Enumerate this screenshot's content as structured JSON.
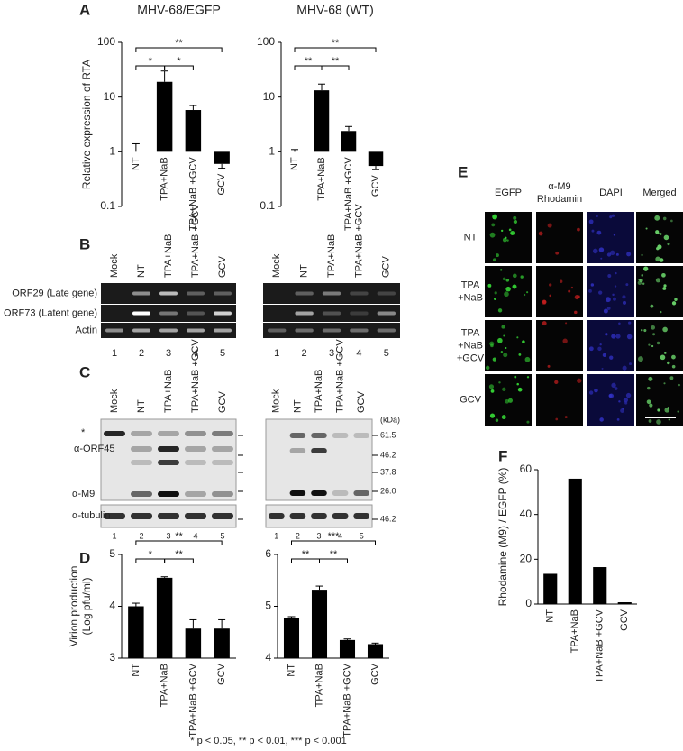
{
  "chart_data": [
    {
      "type": "bar",
      "title": "MHV-68/EGFP",
      "ylabel": [
        "Relative expression of RTA"
      ],
      "log": true,
      "categories": [
        "NT",
        "TPA+NaB",
        "TPA+NaB +GCV",
        "GCV"
      ],
      "values": [
        1.0,
        19,
        5.8,
        0.6
      ],
      "errors": [
        0.4,
        11,
        1.2,
        0.1
      ],
      "color": "#000000",
      "ylim": [
        0.1,
        100
      ],
      "yticks": [
        0.1,
        1,
        10,
        100
      ],
      "brackets": [
        {
          "categories": [
            "NT",
            "GCV"
          ],
          "label": "**"
        },
        {
          "categories": [
            "NT",
            "TPA+NaB"
          ],
          "label": "*"
        },
        {
          "categories": [
            "TPA+NaB",
            "TPA+NaB +GCV"
          ],
          "label": "*"
        }
      ]
    },
    {
      "type": "bar",
      "title": "MHV-68 (WT)",
      "log": true,
      "categories": [
        "NT",
        "TPA+NaB",
        "TPA+NaB +GCV",
        "GCV"
      ],
      "values": [
        1.0,
        13.3,
        2.4,
        0.55
      ],
      "errors": [
        0.1,
        4,
        0.5,
        0.08
      ],
      "color": "#000000",
      "ylim": [
        0.1,
        100
      ],
      "yticks": [
        0.1,
        1,
        10,
        100
      ],
      "brackets": [
        {
          "categories": [
            "NT",
            "GCV"
          ],
          "label": "**"
        },
        {
          "categories": [
            "NT",
            "TPA+NaB"
          ],
          "label": "**"
        },
        {
          "categories": [
            "TPA+NaB",
            "TPA+NaB +GCV"
          ],
          "label": "**"
        }
      ]
    },
    {
      "type": "bar",
      "ylabel": [
        "Virion production",
        "(Log pfu/ml)"
      ],
      "categories": [
        "NT",
        "TPA+NaB",
        "TPA+NaB +GCV",
        "GCV"
      ],
      "values": [
        4.0,
        4.55,
        3.57,
        3.57
      ],
      "errors": [
        0.06,
        0.02,
        0.17,
        0.17
      ],
      "color": "#000000",
      "ylim": [
        3,
        5
      ],
      "yticks": [
        3,
        4,
        5
      ],
      "brackets": [
        {
          "categories": [
            "NT",
            "GCV"
          ],
          "label": "**"
        },
        {
          "categories": [
            "NT",
            "TPA+NaB"
          ],
          "label": "*"
        },
        {
          "categories": [
            "TPA+NaB",
            "TPA+NaB +GCV"
          ],
          "label": "**"
        }
      ]
    },
    {
      "type": "bar",
      "categories": [
        "NT",
        "TPA+NaB",
        "TPA+NaB +GCV",
        "GCV"
      ],
      "values": [
        4.78,
        5.32,
        4.35,
        4.27
      ],
      "errors": [
        0.02,
        0.07,
        0.02,
        0.02
      ],
      "color": "#000000",
      "ylim": [
        4,
        6
      ],
      "yticks": [
        4,
        5,
        6
      ],
      "brackets": [
        {
          "categories": [
            "NT",
            "GCV"
          ],
          "label": "***"
        },
        {
          "categories": [
            "NT",
            "TPA+NaB"
          ],
          "label": "**"
        },
        {
          "categories": [
            "TPA+NaB",
            "TPA+NaB +GCV"
          ],
          "label": "**"
        }
      ]
    },
    {
      "type": "bar",
      "ylabel": [
        "Rhodamine (M9) / EGFP (%)"
      ],
      "categories": [
        "NT",
        "TPA+NaB",
        "TPA+NaB +GCV",
        "GCV"
      ],
      "values": [
        13.5,
        56,
        16.5,
        0.8
      ],
      "color": "#000000",
      "ylim": [
        0,
        60
      ],
      "yticks": [
        0,
        20,
        40,
        60
      ]
    }
  ],
  "figure": {
    "panel_letters": [
      "A",
      "B",
      "C",
      "D",
      "E",
      "F"
    ],
    "B": {
      "lanes": [
        "Mock",
        "NT",
        "TPA+NaB",
        "TPA+NaB +GCV",
        "GCV"
      ],
      "rows": [
        "ORF29 (Late gene)",
        "ORF73 (Latent gene)",
        "Actin"
      ],
      "lane_numbers": [
        1,
        2,
        3,
        4,
        5
      ]
    },
    "C": {
      "lanes": [
        "Mock",
        "NT",
        "TPA+NaB",
        "TPA+NaB +GCV",
        "GCV"
      ],
      "left_labels": [
        "*",
        "α-ORF45",
        "α-M9",
        "α-tubulin"
      ],
      "kda_unit": "(kDa)",
      "markers": [
        "61.5",
        "46.2",
        "37.8",
        "26.0"
      ],
      "tubulin_marker": "46.2",
      "lane_numbers": [
        1,
        2,
        3,
        4,
        5
      ]
    },
    "E": {
      "columns": [
        [
          "EGFP"
        ],
        [
          "α-M9",
          "Rhodamin"
        ],
        [
          "DAPI"
        ],
        [
          "Merged"
        ]
      ],
      "rows": [
        [
          "NT"
        ],
        [
          "TPA",
          "+NaB"
        ],
        [
          "TPA",
          "+NaB",
          "+GCV"
        ],
        [
          "GCV"
        ]
      ]
    },
    "footnote": "* p < 0.05, ** p < 0.01, *** p < 0.001"
  }
}
